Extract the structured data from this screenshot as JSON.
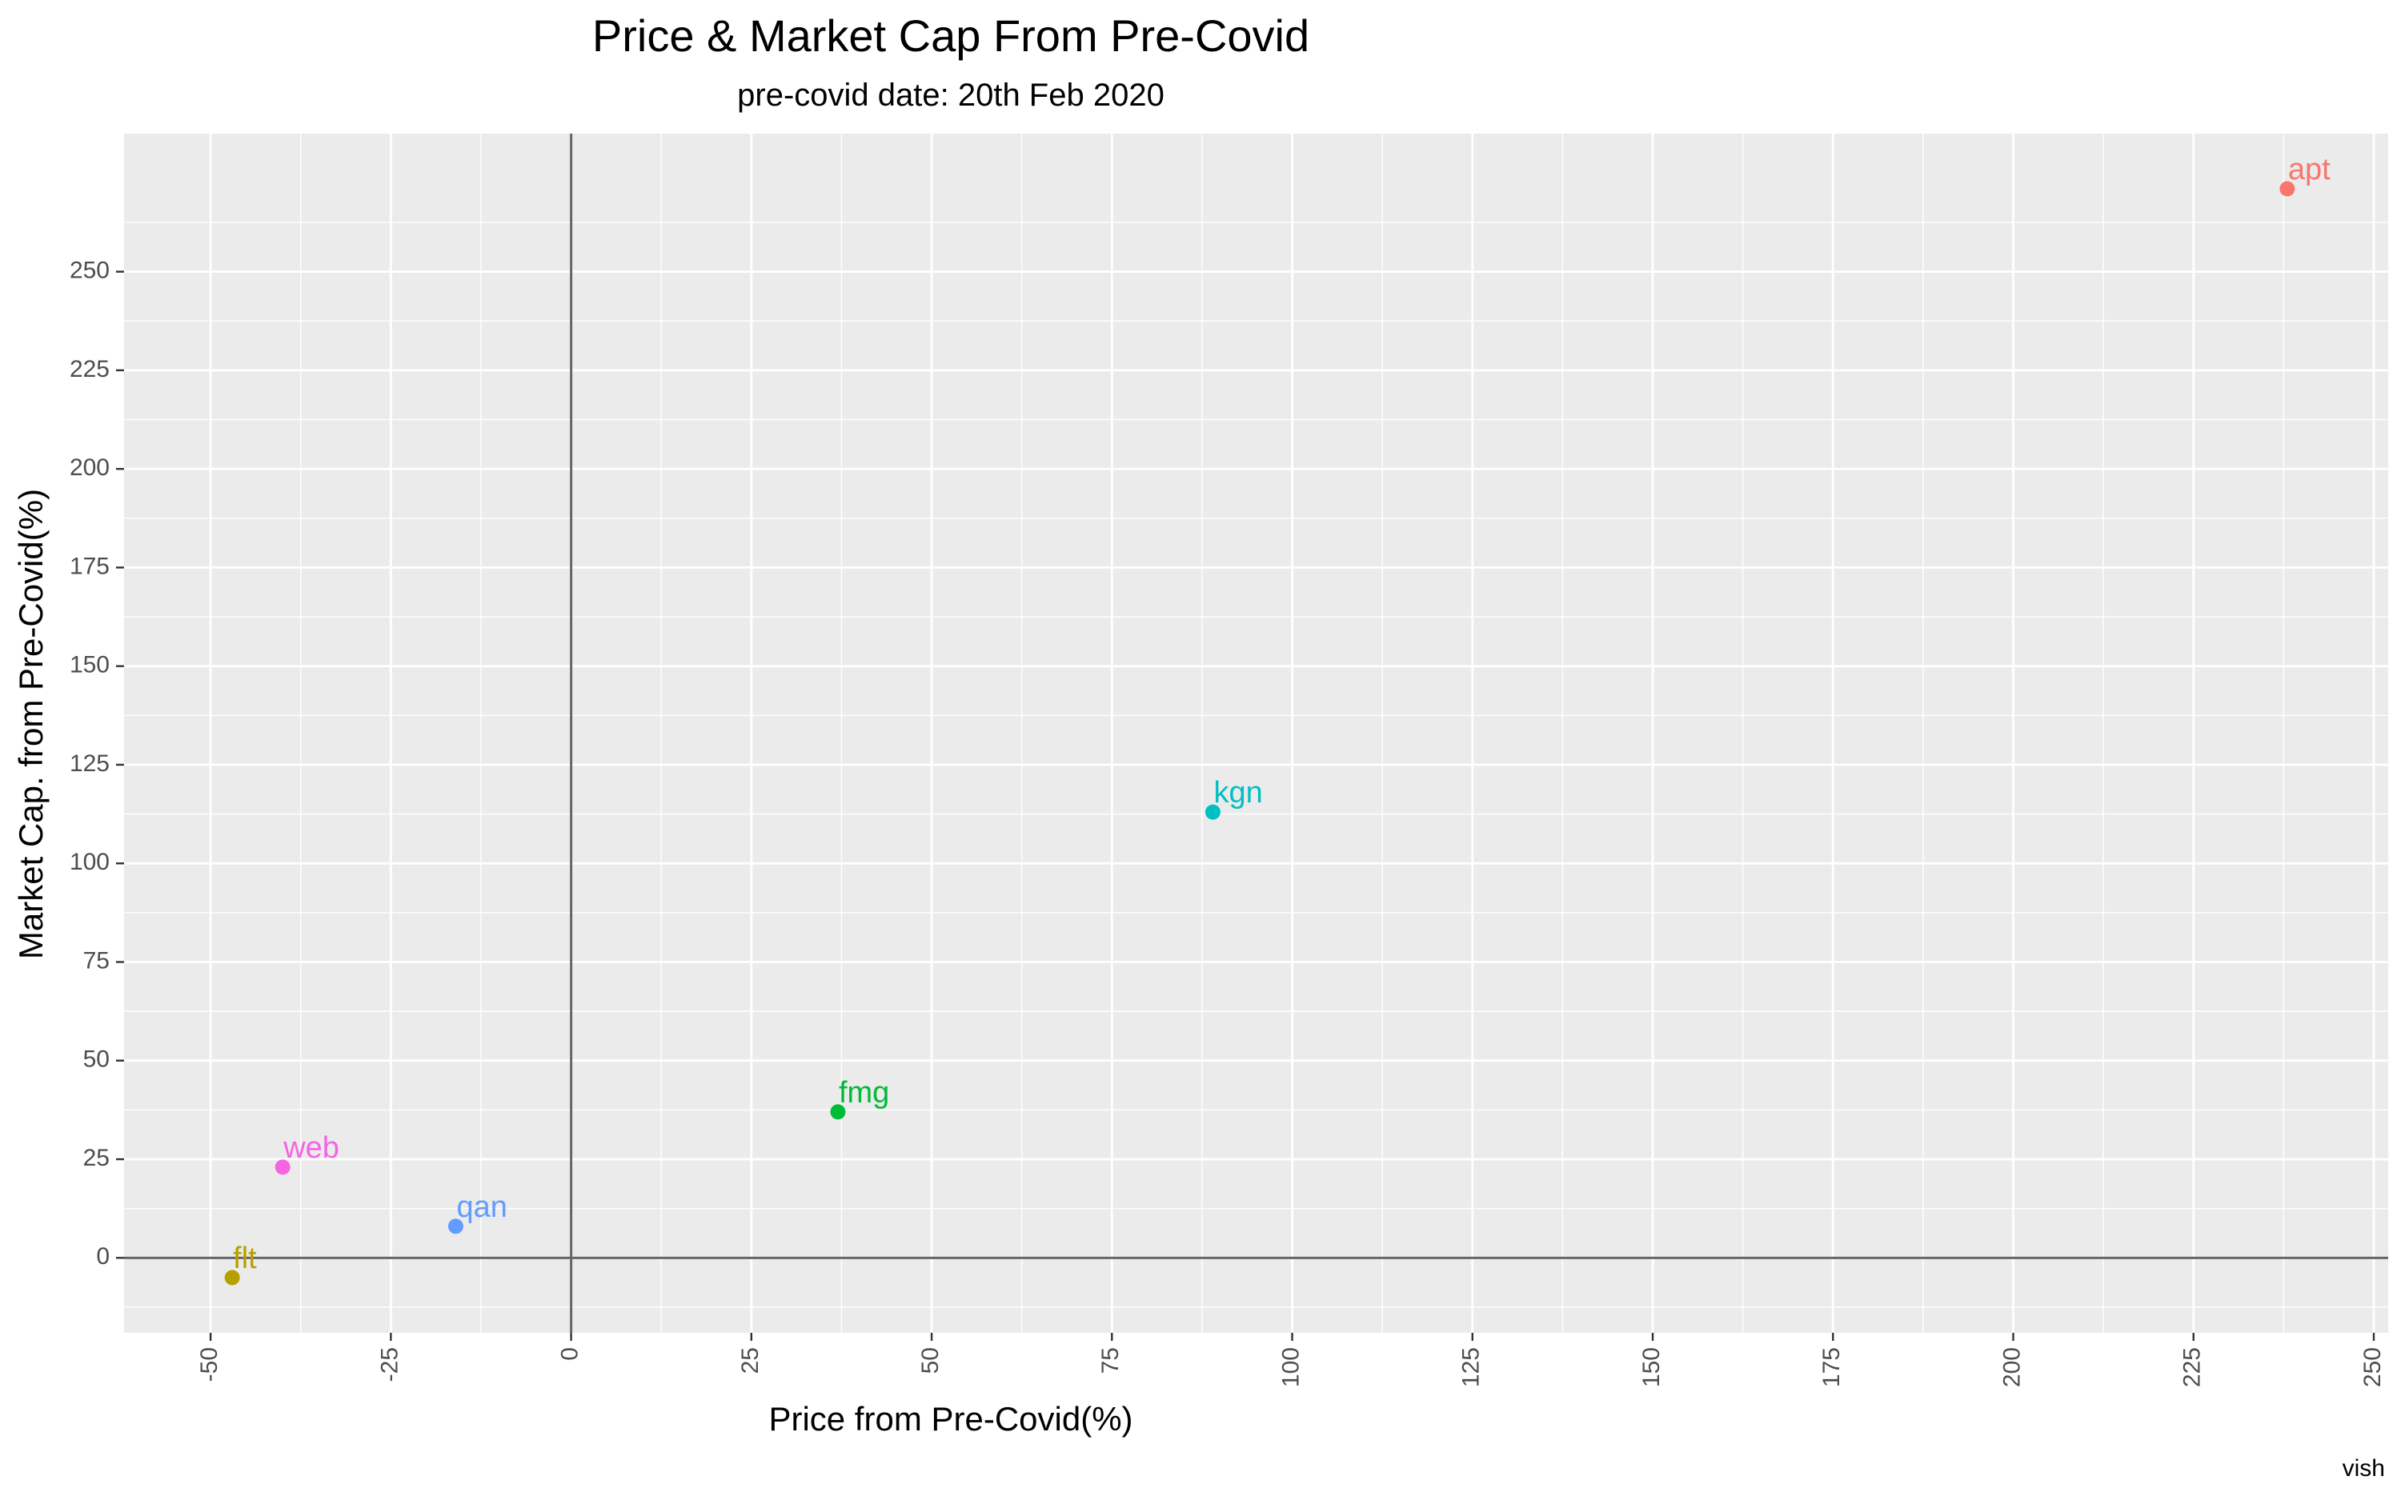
{
  "chart_data": {
    "type": "scatter",
    "title": "Price & Market Cap From Pre-Covid",
    "subtitle": "pre-covid date: 20th Feb 2020",
    "xlabel": "Price from Pre-Covid(%)",
    "ylabel": "Market Cap. from Pre-Covid(%)",
    "caption": "vish",
    "xlim": [
      -62,
      252
    ],
    "ylim": [
      -19,
      285
    ],
    "x_ticks": [
      -50,
      -25,
      0,
      25,
      50,
      75,
      100,
      125,
      150,
      175,
      200,
      225,
      250
    ],
    "y_ticks": [
      0,
      25,
      50,
      75,
      100,
      125,
      150,
      175,
      200,
      225,
      250
    ],
    "grid": true,
    "reference_lines": {
      "x": 0,
      "y": 0
    },
    "legend": "none",
    "points": [
      {
        "label": "apt",
        "x": 238,
        "y": 271,
        "color": "#F8766D"
      },
      {
        "label": "kgn",
        "x": 89,
        "y": 113,
        "color": "#00BFC4"
      },
      {
        "label": "fmg",
        "x": 37,
        "y": 37,
        "color": "#00BA38"
      },
      {
        "label": "web",
        "x": -40,
        "y": 23,
        "color": "#F564E3"
      },
      {
        "label": "qan",
        "x": -16,
        "y": 8,
        "color": "#619CFF"
      },
      {
        "label": "flt",
        "x": -47,
        "y": -5,
        "color": "#B79F00"
      }
    ]
  }
}
